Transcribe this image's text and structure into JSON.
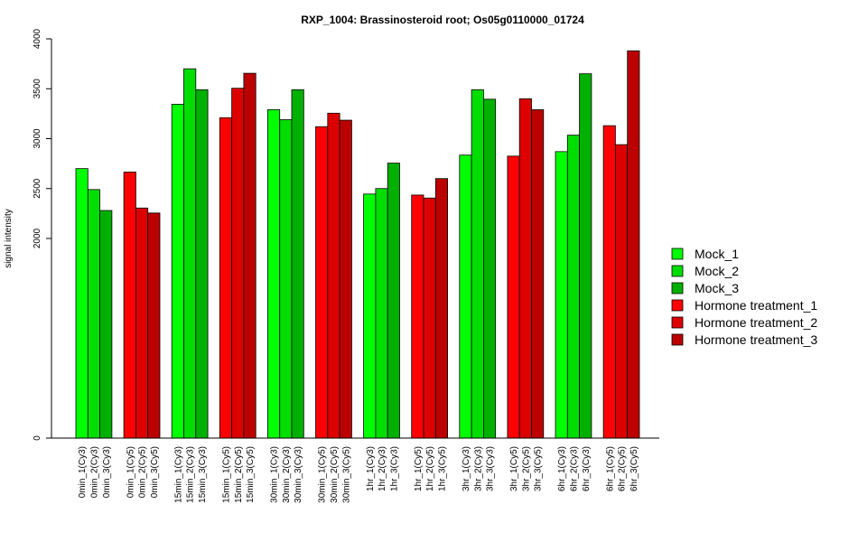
{
  "chart_data": {
    "type": "bar",
    "title": "RXP_1004: Brassinosteroid root; Os05g0110000_01724",
    "ylabel": "signal intensity",
    "xlabel": "",
    "ylim": [
      0,
      4000
    ],
    "yticks": [
      "0",
      "2000",
      "2500",
      "3000",
      "3500",
      "4000"
    ],
    "axis_break": [
      0,
      2000
    ],
    "grid": false,
    "legend_position": "right",
    "categories": [
      "0min_1(Cy3)",
      "0min_2(Cy3)",
      "0min_3(Cy3)",
      "0min_1(Cy5)",
      "0min_2(Cy5)",
      "0min_3(Cy5)",
      "15min_1(Cy3)",
      "15min_2(Cy3)",
      "15min_3(Cy3)",
      "15min_1(Cy5)",
      "15min_2(Cy5)",
      "15min_3(Cy5)",
      "30min_1(Cy3)",
      "30min_2(Cy3)",
      "30min_3(Cy3)",
      "30min_1(Cy5)",
      "30min_2(Cy5)",
      "30min_3(Cy5)",
      "1hr_1(Cy3)",
      "1hr_2(Cy3)",
      "1hr_3(Cy3)",
      "1hr_1(Cy5)",
      "1hr_2(Cy5)",
      "1hr_3(Cy5)",
      "3hr_1(Cy3)",
      "3hr_2(Cy3)",
      "3hr_3(Cy3)",
      "3hr_1(Cy5)",
      "3hr_2(Cy5)",
      "3hr_3(Cy5)",
      "6hr_1(Cy3)",
      "6hr_2(Cy3)",
      "6hr_3(Cy3)",
      "6hr_1(Cy5)",
      "6hr_2(Cy5)",
      "6hr_3(Cy5)"
    ],
    "values": [
      2700,
      2490,
      2280,
      2665,
      2305,
      2255,
      3345,
      3700,
      3490,
      3210,
      3505,
      3655,
      3290,
      3190,
      3490,
      3120,
      3255,
      3185,
      2445,
      2500,
      2755,
      2435,
      2405,
      2600,
      2835,
      3490,
      3395,
      2825,
      3400,
      3290,
      2870,
      3035,
      3650,
      3130,
      2940,
      3880
    ],
    "bar_series_index": [
      0,
      1,
      2,
      3,
      4,
      5,
      0,
      1,
      2,
      3,
      4,
      5,
      0,
      1,
      2,
      3,
      4,
      5,
      0,
      1,
      2,
      3,
      4,
      5,
      0,
      1,
      2,
      3,
      4,
      5,
      0,
      1,
      2,
      3,
      4,
      5
    ],
    "series": [
      {
        "name": "Mock_1",
        "color": "#00ff00"
      },
      {
        "name": "Mock_2",
        "color": "#00dd00"
      },
      {
        "name": "Mock_3",
        "color": "#00b000"
      },
      {
        "name": "Hormone treatment_1",
        "color": "#ff0000"
      },
      {
        "name": "Hormone treatment_2",
        "color": "#dd0000"
      },
      {
        "name": "Hormone treatment_3",
        "color": "#bb0000"
      }
    ]
  }
}
